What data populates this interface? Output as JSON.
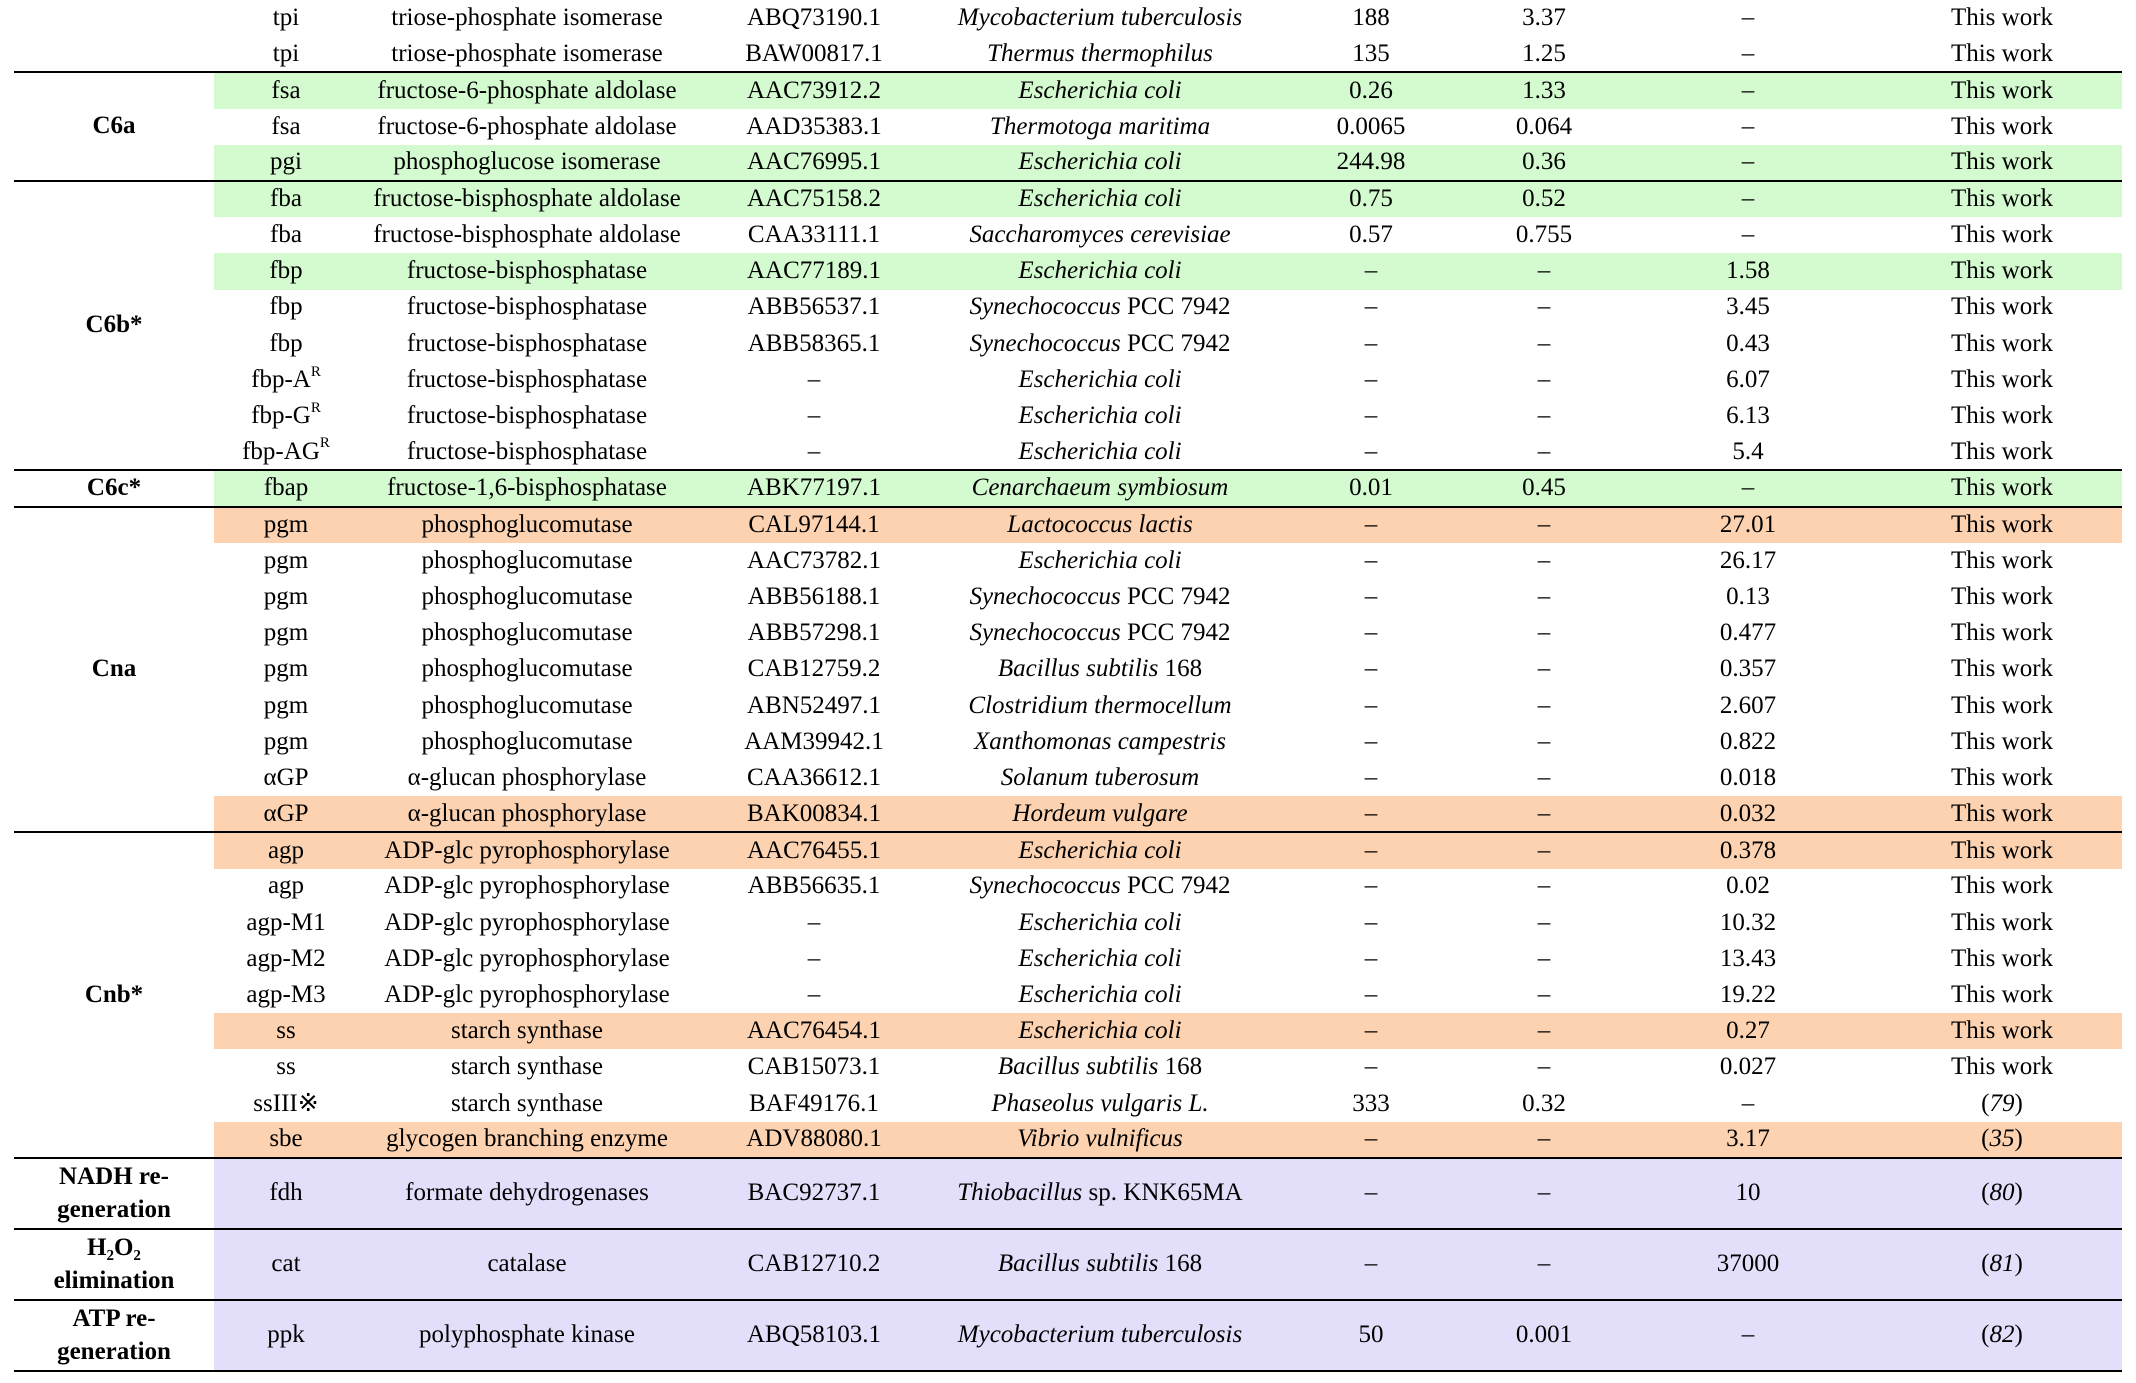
{
  "groups": [
    {
      "name": "",
      "rows": [
        {
          "gene": "tpi",
          "enzyme": "triose-phosphate isomerase",
          "accession": "ABQ73190.1",
          "organism": "Mycobacterium tuberculosis",
          "km": "188",
          "kcat": "3.37",
          "activity": "–",
          "ref": "This work"
        },
        {
          "gene": "tpi",
          "enzyme": "triose-phosphate isomerase",
          "accession": "BAW00817.1",
          "organism": "Thermus thermophilus",
          "km": "135",
          "kcat": "1.25",
          "activity": "–",
          "ref": "This work"
        }
      ]
    },
    {
      "name": "C6a",
      "rows": [
        {
          "gene": "fsa",
          "enzyme": "fructose-6-phosphate aldolase",
          "accession": "AAC73912.2",
          "organism": "Escherichia coli",
          "km": "0.26",
          "kcat": "1.33",
          "activity": "–",
          "ref": "This work",
          "hl": "green"
        },
        {
          "gene": "fsa",
          "enzyme": "fructose-6-phosphate aldolase",
          "accession": "AAD35383.1",
          "organism": "Thermotoga maritima",
          "km": "0.0065",
          "kcat": "0.064",
          "activity": "–",
          "ref": "This work"
        },
        {
          "gene": "pgi",
          "enzyme": "phosphoglucose isomerase",
          "accession": "AAC76995.1",
          "organism": "Escherichia coli",
          "km": "244.98",
          "kcat": "0.36",
          "activity": "–",
          "ref": "This work",
          "hl": "green"
        }
      ]
    },
    {
      "name": "C6b*",
      "rows": [
        {
          "gene": "fba",
          "enzyme": "fructose-bisphosphate aldolase",
          "accession": "AAC75158.2",
          "organism": "Escherichia coli",
          "km": "0.75",
          "kcat": "0.52",
          "activity": "–",
          "ref": "This work",
          "hl": "green"
        },
        {
          "gene": "fba",
          "enzyme": "fructose-bisphosphate aldolase",
          "accession": "CAA33111.1",
          "organism": "Saccharomyces cerevisiae",
          "km": "0.57",
          "kcat": "0.755",
          "activity": "–",
          "ref": "This work"
        },
        {
          "gene": "fbp",
          "enzyme": "fructose-bisphosphatase",
          "accession": "AAC77189.1",
          "organism": "Escherichia coli",
          "km": "–",
          "kcat": "–",
          "activity": "1.58",
          "ref": "This work",
          "hl": "green"
        },
        {
          "gene": "fbp",
          "enzyme": "fructose-bisphosphatase",
          "accession": "ABB56537.1",
          "organism": "Synechococcus",
          "organism_suffix": " PCC 7942",
          "km": "–",
          "kcat": "–",
          "activity": "3.45",
          "ref": "This work"
        },
        {
          "gene": "fbp",
          "enzyme": "fructose-bisphosphatase",
          "accession": "ABB58365.1",
          "organism": "Synechococcus",
          "organism_suffix": " PCC 7942",
          "km": "–",
          "kcat": "–",
          "activity": "0.43",
          "ref": "This work"
        },
        {
          "gene": "fbp-A",
          "gene_sup": "R",
          "enzyme": "fructose-bisphosphatase",
          "accession": "–",
          "organism": "Escherichia coli",
          "km": "–",
          "kcat": "–",
          "activity": "6.07",
          "ref": "This work"
        },
        {
          "gene": "fbp-G",
          "gene_sup": "R",
          "enzyme": "fructose-bisphosphatase",
          "accession": "–",
          "organism": "Escherichia coli",
          "km": "–",
          "kcat": "–",
          "activity": "6.13",
          "ref": "This work"
        },
        {
          "gene": "fbp-AG",
          "gene_sup": "R",
          "enzyme": "fructose-bisphosphatase",
          "accession": "–",
          "organism": "Escherichia coli",
          "km": "–",
          "kcat": "–",
          "activity": "5.4",
          "ref": "This work"
        }
      ]
    },
    {
      "name": "C6c*",
      "rows": [
        {
          "gene": "fbap",
          "enzyme": "fructose-1,6-bisphosphatase",
          "accession": "ABK77197.1",
          "organism": "Cenarchaeum symbiosum",
          "km": "0.01",
          "kcat": "0.45",
          "activity": "–",
          "ref": "This work",
          "hl": "green"
        }
      ]
    },
    {
      "name": "Cna",
      "rows": [
        {
          "gene": "pgm",
          "enzyme": "phosphoglucomutase",
          "accession": "CAL97144.1",
          "organism": "Lactococcus lactis",
          "km": "–",
          "kcat": "–",
          "activity": "27.01",
          "ref": "This work",
          "hl": "orange"
        },
        {
          "gene": "pgm",
          "enzyme": "phosphoglucomutase",
          "accession": "AAC73782.1",
          "organism": "Escherichia coli",
          "km": "–",
          "kcat": "–",
          "activity": "26.17",
          "ref": "This work"
        },
        {
          "gene": "pgm",
          "enzyme": "phosphoglucomutase",
          "accession": "ABB56188.1",
          "organism": "Synechococcus",
          "organism_suffix": " PCC 7942",
          "km": "–",
          "kcat": "–",
          "activity": "0.13",
          "ref": "This work"
        },
        {
          "gene": "pgm",
          "enzyme": "phosphoglucomutase",
          "accession": "ABB57298.1",
          "organism": "Synechococcus",
          "organism_suffix": " PCC 7942",
          "km": "–",
          "kcat": "–",
          "activity": "0.477",
          "ref": "This work"
        },
        {
          "gene": "pgm",
          "enzyme": "phosphoglucomutase",
          "accession": "CAB12759.2",
          "organism": "Bacillus subtilis",
          "organism_suffix": " 168",
          "km": "–",
          "kcat": "–",
          "activity": "0.357",
          "ref": "This work"
        },
        {
          "gene": "pgm",
          "enzyme": "phosphoglucomutase",
          "accession": "ABN52497.1",
          "organism": "Clostridium thermocellum",
          "km": "–",
          "kcat": "–",
          "activity": "2.607",
          "ref": "This work"
        },
        {
          "gene": "pgm",
          "enzyme": "phosphoglucomutase",
          "accession": "AAM39942.1",
          "organism": "Xanthomonas campestris",
          "km": "–",
          "kcat": "–",
          "activity": "0.822",
          "ref": "This work"
        },
        {
          "gene": "αGP",
          "enzyme": "α-glucan phosphorylase",
          "accession": "CAA36612.1",
          "organism": "Solanum tuberosum",
          "km": "–",
          "kcat": "–",
          "activity": "0.018",
          "ref": "This work"
        },
        {
          "gene": "αGP",
          "enzyme": "α-glucan phosphorylase",
          "accession": "BAK00834.1",
          "organism": "Hordeum vulgare",
          "km": "–",
          "kcat": "–",
          "activity": "0.032",
          "ref": "This work",
          "hl": "orange"
        }
      ]
    },
    {
      "name": "Cnb*",
      "rows": [
        {
          "gene": "agp",
          "enzyme": "ADP-glc pyrophosphorylase",
          "accession": "AAC76455.1",
          "organism": "Escherichia coli",
          "km": "–",
          "kcat": "–",
          "activity": "0.378",
          "ref": "This work",
          "hl": "orange"
        },
        {
          "gene": "agp",
          "enzyme": "ADP-glc pyrophosphorylase",
          "accession": "ABB56635.1",
          "organism": "Synechococcus",
          "organism_suffix": " PCC 7942",
          "km": "–",
          "kcat": "–",
          "activity": "0.02",
          "ref": "This work"
        },
        {
          "gene": "agp-M1",
          "enzyme": "ADP-glc pyrophosphorylase",
          "accession": "–",
          "organism": "Escherichia coli",
          "km": "–",
          "kcat": "–",
          "activity": "10.32",
          "ref": "This work"
        },
        {
          "gene": "agp-M2",
          "enzyme": "ADP-glc pyrophosphorylase",
          "accession": "–",
          "organism": "Escherichia coli",
          "km": "–",
          "kcat": "–",
          "activity": "13.43",
          "ref": "This work"
        },
        {
          "gene": "agp-M3",
          "enzyme": "ADP-glc pyrophosphorylase",
          "accession": "–",
          "organism": "Escherichia coli",
          "km": "–",
          "kcat": "–",
          "activity": "19.22",
          "ref": "This work"
        },
        {
          "gene": "ss",
          "enzyme": "starch synthase",
          "accession": "AAC76454.1",
          "organism": "Escherichia coli",
          "km": "–",
          "kcat": "–",
          "activity": "0.27",
          "ref": "This work",
          "hl": "orange"
        },
        {
          "gene": "ss",
          "enzyme": "starch synthase",
          "accession": "CAB15073.1",
          "organism": "Bacillus subtilis",
          "organism_suffix": " 168",
          "km": "–",
          "kcat": "–",
          "activity": "0.027",
          "ref": "This work"
        },
        {
          "gene": "ssIII※",
          "enzyme": "starch synthase",
          "accession": "BAF49176.1",
          "organism": "Phaseolus vulgaris L.",
          "km": "333",
          "kcat": "0.32",
          "activity": "–",
          "ref": "(79)",
          "ref_italic": true
        },
        {
          "gene": "sbe",
          "enzyme": "glycogen branching enzyme",
          "accession": "ADV88080.1",
          "organism": "Vibrio vulnificus",
          "km": "–",
          "kcat": "–",
          "activity": "3.17",
          "ref": "(35)",
          "ref_italic": true,
          "hl": "orange"
        }
      ]
    },
    {
      "name": "NADH re-\ngeneration",
      "rows": [
        {
          "gene": "fdh",
          "enzyme": "formate dehydrogenases",
          "accession": "BAC92737.1",
          "organism": "Thiobacillus",
          "organism_suffix": " sp. KNK65MA",
          "km": "–",
          "kcat": "–",
          "activity": "10",
          "ref": "(80)",
          "ref_italic": true,
          "hl": "purple"
        }
      ]
    },
    {
      "name": "H₂O₂\nelimination",
      "rows": [
        {
          "gene": "cat",
          "enzyme": "catalase",
          "accession": "CAB12710.2",
          "organism": "Bacillus subtilis",
          "organism_suffix": " 168",
          "km": "–",
          "kcat": "–",
          "activity": "37000",
          "ref": "(81)",
          "ref_italic": true,
          "hl": "purple"
        }
      ]
    },
    {
      "name": "ATP re-\ngeneration",
      "rows": [
        {
          "gene": "ppk",
          "enzyme": "polyphosphate kinase",
          "accession": "ABQ58103.1",
          "organism": "Mycobacterium tuberculosis",
          "km": "50",
          "kcat": "0.001",
          "activity": "–",
          "ref": "(82)",
          "ref_italic": true,
          "hl": "purple"
        }
      ]
    }
  ]
}
